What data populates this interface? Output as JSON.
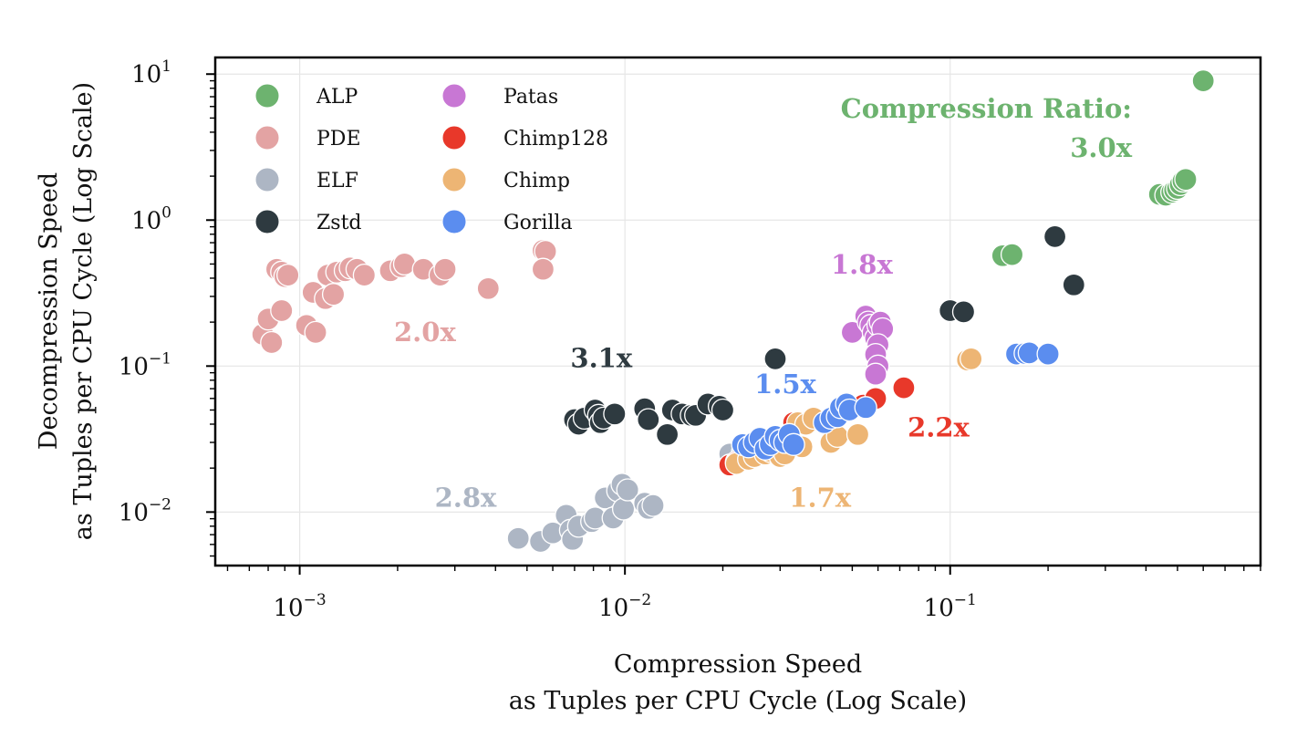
{
  "chart_data": {
    "type": "scatter",
    "xlabel": [
      "Compression Speed",
      "as Tuples per CPU Cycle (Log Scale)"
    ],
    "ylabel": [
      "Decompression Speed",
      "as Tuples per CPU Cycle (Log Scale)"
    ],
    "xscale": "log",
    "yscale": "log",
    "xlim": [
      0.00055,
      0.9
    ],
    "ylim": [
      0.0043,
      13
    ],
    "xticks": [
      {
        "value": 0.001,
        "base": "10",
        "exp": "−3"
      },
      {
        "value": 0.01,
        "base": "10",
        "exp": "−2"
      },
      {
        "value": 0.1,
        "base": "10",
        "exp": "−1"
      }
    ],
    "yticks": [
      {
        "value": 10,
        "base": "10",
        "exp": "1"
      },
      {
        "value": 1,
        "base": "10",
        "exp": "0"
      },
      {
        "value": 0.1,
        "base": "10",
        "exp": "−1"
      },
      {
        "value": 0.01,
        "base": "10",
        "exp": "−2"
      }
    ],
    "grid": true,
    "legend_position": "top-left",
    "legend_columns": 2,
    "ratio_heading": "Compression Ratio:",
    "series": [
      {
        "name": "ALP",
        "color": "#6db36f",
        "ratio_label": "3.0x",
        "label_at": [
          0.28,
          2.7
        ],
        "points": [
          [
            0.6,
            9.0
          ],
          [
            0.145,
            0.57
          ],
          [
            0.155,
            0.58
          ],
          [
            0.44,
            1.5
          ],
          [
            0.46,
            1.48
          ],
          [
            0.48,
            1.55
          ],
          [
            0.49,
            1.6
          ],
          [
            0.5,
            1.65
          ],
          [
            0.51,
            1.75
          ],
          [
            0.52,
            1.85
          ],
          [
            0.53,
            1.9
          ]
        ]
      },
      {
        "name": "PDE",
        "color": "#e3a3a3",
        "ratio_label": "2.0x",
        "label_at": [
          0.00195,
          0.148
        ],
        "points": [
          [
            0.00077,
            0.165
          ],
          [
            0.0008,
            0.21
          ],
          [
            0.00082,
            0.145
          ],
          [
            0.00085,
            0.46
          ],
          [
            0.00088,
            0.44
          ],
          [
            0.0009,
            0.41
          ],
          [
            0.00092,
            0.42
          ],
          [
            0.00088,
            0.24
          ],
          [
            0.00105,
            0.19
          ],
          [
            0.0011,
            0.32
          ],
          [
            0.00112,
            0.17
          ],
          [
            0.0012,
            0.29
          ],
          [
            0.00122,
            0.42
          ],
          [
            0.00127,
            0.31
          ],
          [
            0.0013,
            0.44
          ],
          [
            0.00138,
            0.45
          ],
          [
            0.00143,
            0.47
          ],
          [
            0.0015,
            0.46
          ],
          [
            0.00158,
            0.42
          ],
          [
            0.0019,
            0.45
          ],
          [
            0.00205,
            0.48
          ],
          [
            0.0021,
            0.5
          ],
          [
            0.0024,
            0.46
          ],
          [
            0.0027,
            0.42
          ],
          [
            0.0028,
            0.46
          ],
          [
            0.0038,
            0.34
          ],
          [
            0.0056,
            0.62
          ],
          [
            0.0057,
            0.61
          ],
          [
            0.0056,
            0.46
          ]
        ]
      },
      {
        "name": "ELF",
        "color": "#adb6c4",
        "ratio_label": "2.8x",
        "label_at": [
          0.0026,
          0.0109
        ],
        "points": [
          [
            0.0047,
            0.0066
          ],
          [
            0.0055,
            0.0063
          ],
          [
            0.006,
            0.0072
          ],
          [
            0.0066,
            0.0095
          ],
          [
            0.0068,
            0.0075
          ],
          [
            0.0069,
            0.0065
          ],
          [
            0.0072,
            0.008
          ],
          [
            0.0079,
            0.0086
          ],
          [
            0.0081,
            0.0091
          ],
          [
            0.0087,
            0.0125
          ],
          [
            0.0092,
            0.0091
          ],
          [
            0.0095,
            0.014
          ],
          [
            0.0098,
            0.0155
          ],
          [
            0.0099,
            0.0105
          ],
          [
            0.0102,
            0.0142
          ],
          [
            0.0115,
            0.0115
          ],
          [
            0.0118,
            0.0106
          ],
          [
            0.0122,
            0.0111
          ],
          [
            0.021,
            0.025
          ],
          [
            0.023,
            0.026
          ]
        ]
      },
      {
        "name": "Zstd",
        "color": "#2e3a40",
        "ratio_label": "3.1x",
        "label_at": [
          0.0068,
          0.098
        ],
        "points": [
          [
            0.007,
            0.043
          ],
          [
            0.0072,
            0.04
          ],
          [
            0.0075,
            0.044
          ],
          [
            0.0081,
            0.05
          ],
          [
            0.0083,
            0.046
          ],
          [
            0.0084,
            0.041
          ],
          [
            0.0086,
            0.044
          ],
          [
            0.0093,
            0.047
          ],
          [
            0.0115,
            0.051
          ],
          [
            0.0118,
            0.043
          ],
          [
            0.0135,
            0.034
          ],
          [
            0.014,
            0.05
          ],
          [
            0.015,
            0.047
          ],
          [
            0.016,
            0.046
          ],
          [
            0.0165,
            0.046
          ],
          [
            0.018,
            0.055
          ],
          [
            0.0195,
            0.053
          ],
          [
            0.02,
            0.05
          ],
          [
            0.029,
            0.112
          ],
          [
            0.1,
            0.24
          ],
          [
            0.11,
            0.235
          ],
          [
            0.21,
            0.77
          ],
          [
            0.24,
            0.36
          ]
        ]
      },
      {
        "name": "Patas",
        "color": "#c877d4",
        "ratio_label": "1.8x",
        "label_at": [
          0.043,
          0.43
        ],
        "points": [
          [
            0.05,
            0.17
          ],
          [
            0.055,
            0.22
          ],
          [
            0.056,
            0.2
          ],
          [
            0.057,
            0.19
          ],
          [
            0.058,
            0.17
          ],
          [
            0.059,
            0.155
          ],
          [
            0.06,
            0.19
          ],
          [
            0.061,
            0.2
          ],
          [
            0.062,
            0.18
          ],
          [
            0.06,
            0.14
          ],
          [
            0.059,
            0.12
          ],
          [
            0.06,
            0.1
          ],
          [
            0.059,
            0.088
          ]
        ]
      },
      {
        "name": "Chimp128",
        "color": "#e8382a",
        "ratio_label": "2.2x",
        "label_at": [
          0.074,
          0.033
        ],
        "points": [
          [
            0.021,
            0.021
          ],
          [
            0.022,
            0.022
          ],
          [
            0.033,
            0.041
          ],
          [
            0.054,
            0.054
          ],
          [
            0.059,
            0.06
          ],
          [
            0.072,
            0.071
          ]
        ]
      },
      {
        "name": "Chimp",
        "color": "#edb574",
        "ratio_label": "1.7x",
        "label_at": [
          0.032,
          0.0109
        ],
        "points": [
          [
            0.022,
            0.0215
          ],
          [
            0.024,
            0.023
          ],
          [
            0.025,
            0.024
          ],
          [
            0.027,
            0.025
          ],
          [
            0.028,
            0.026
          ],
          [
            0.03,
            0.024
          ],
          [
            0.031,
            0.025
          ],
          [
            0.032,
            0.03
          ],
          [
            0.034,
            0.041
          ],
          [
            0.035,
            0.028
          ],
          [
            0.036,
            0.04
          ],
          [
            0.038,
            0.044
          ],
          [
            0.043,
            0.03
          ],
          [
            0.045,
            0.033
          ],
          [
            0.052,
            0.034
          ],
          [
            0.113,
            0.11
          ],
          [
            0.116,
            0.112
          ]
        ]
      },
      {
        "name": "Gorilla",
        "color": "#5b8def",
        "ratio_label": "1.5x",
        "label_at": [
          0.025,
          0.065
        ],
        "points": [
          [
            0.023,
            0.029
          ],
          [
            0.024,
            0.028
          ],
          [
            0.025,
            0.03
          ],
          [
            0.026,
            0.032
          ],
          [
            0.027,
            0.027
          ],
          [
            0.028,
            0.029
          ],
          [
            0.029,
            0.033
          ],
          [
            0.03,
            0.031
          ],
          [
            0.031,
            0.03
          ],
          [
            0.032,
            0.034
          ],
          [
            0.033,
            0.029
          ],
          [
            0.041,
            0.041
          ],
          [
            0.043,
            0.044
          ],
          [
            0.045,
            0.045
          ],
          [
            0.046,
            0.052
          ],
          [
            0.048,
            0.055
          ],
          [
            0.049,
            0.05
          ],
          [
            0.055,
            0.052
          ],
          [
            0.16,
            0.121
          ],
          [
            0.17,
            0.122
          ],
          [
            0.175,
            0.123
          ],
          [
            0.2,
            0.121
          ]
        ]
      }
    ]
  }
}
